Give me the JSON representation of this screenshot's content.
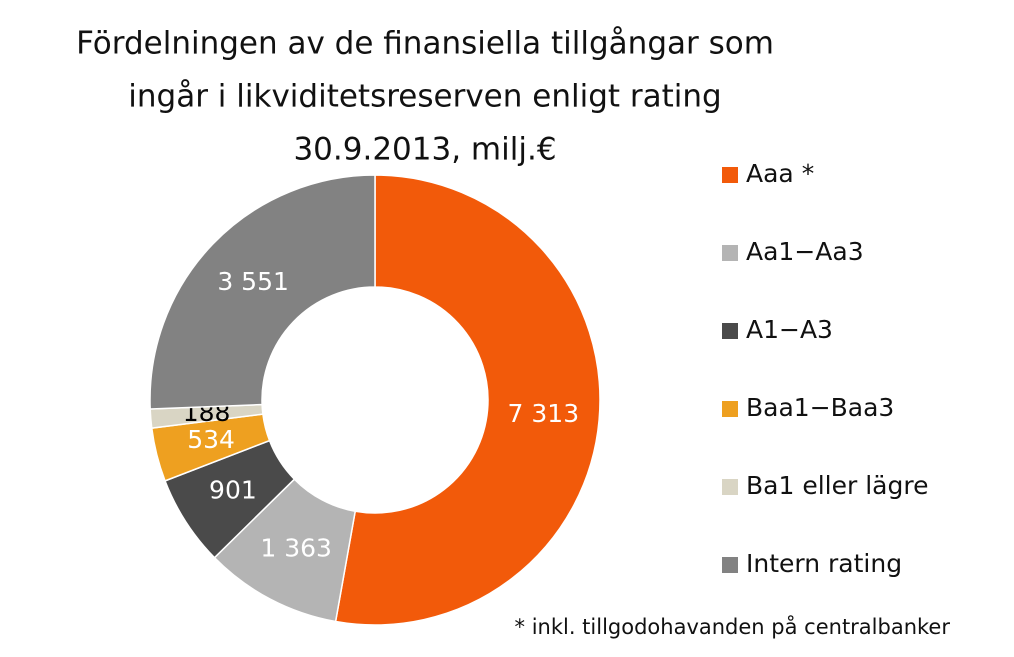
{
  "chart_data": {
    "type": "donut",
    "title": [
      "Fördelningen av de finansiella tillgångar som",
      "ingår i likviditetsreserven enligt rating",
      "30.9.2013, milj.€"
    ],
    "categories": [
      "Aaa *",
      "Aa1−Aa3",
      "A1−A3",
      "Baa1−Baa3",
      "Ba1 eller lägre",
      "Intern rating"
    ],
    "values": [
      7313,
      1363,
      901,
      534,
      188,
      3551
    ],
    "value_labels": [
      "7 313",
      "1 363",
      "901",
      "534",
      "188",
      "3 551"
    ],
    "colors": [
      "#f25a0a",
      "#b4b4b4",
      "#4a4a4a",
      "#eea020",
      "#d9d5c4",
      "#828282"
    ],
    "label_colors": [
      "#ffffff",
      "#ffffff",
      "#ffffff",
      "#ffffff",
      "#000000",
      "#ffffff"
    ],
    "legend": "right",
    "footnote": "* inkl. tillgodohavanden på centralbanker"
  }
}
